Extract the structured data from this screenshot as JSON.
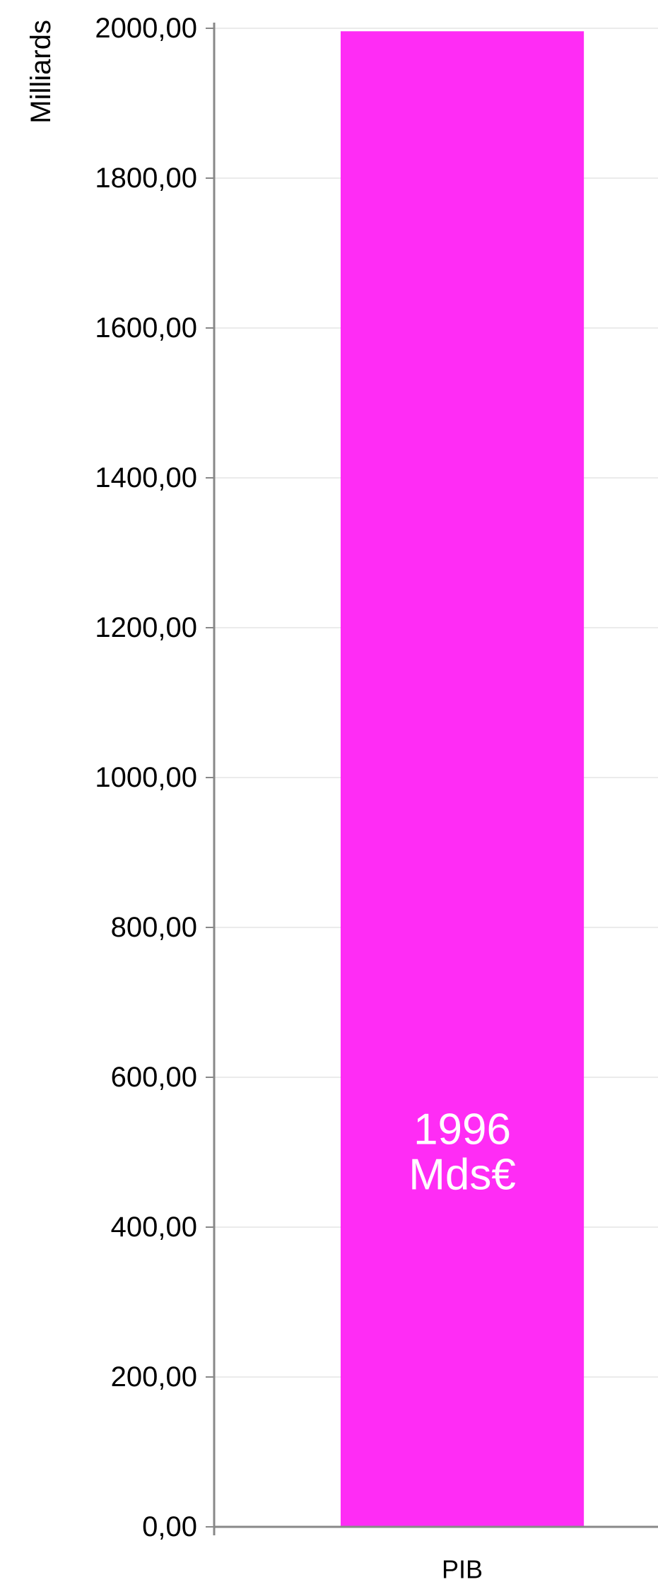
{
  "chart_data": {
    "type": "bar",
    "ylabel": "Milliards",
    "xlabel": "",
    "categories": [
      "PIB"
    ],
    "values": [
      1996
    ],
    "ylim": [
      0,
      2000
    ],
    "yticks": [
      0,
      200,
      400,
      600,
      800,
      1000,
      1200,
      1400,
      1600,
      1800,
      2000
    ],
    "ytick_labels": [
      "0,00",
      "200,00",
      "400,00",
      "600,00",
      "800,00",
      "1000,00",
      "1200,00",
      "1400,00",
      "1600,00",
      "1800,00",
      "2000,00"
    ],
    "data_labels": [
      [
        "1996",
        "Mds€"
      ]
    ],
    "grid": true,
    "legend": "none",
    "bar_color": "#FF2CF5",
    "axis_color": "#888888",
    "grid_color": "#EBEBEB",
    "label_color": "#FFFFFF"
  }
}
